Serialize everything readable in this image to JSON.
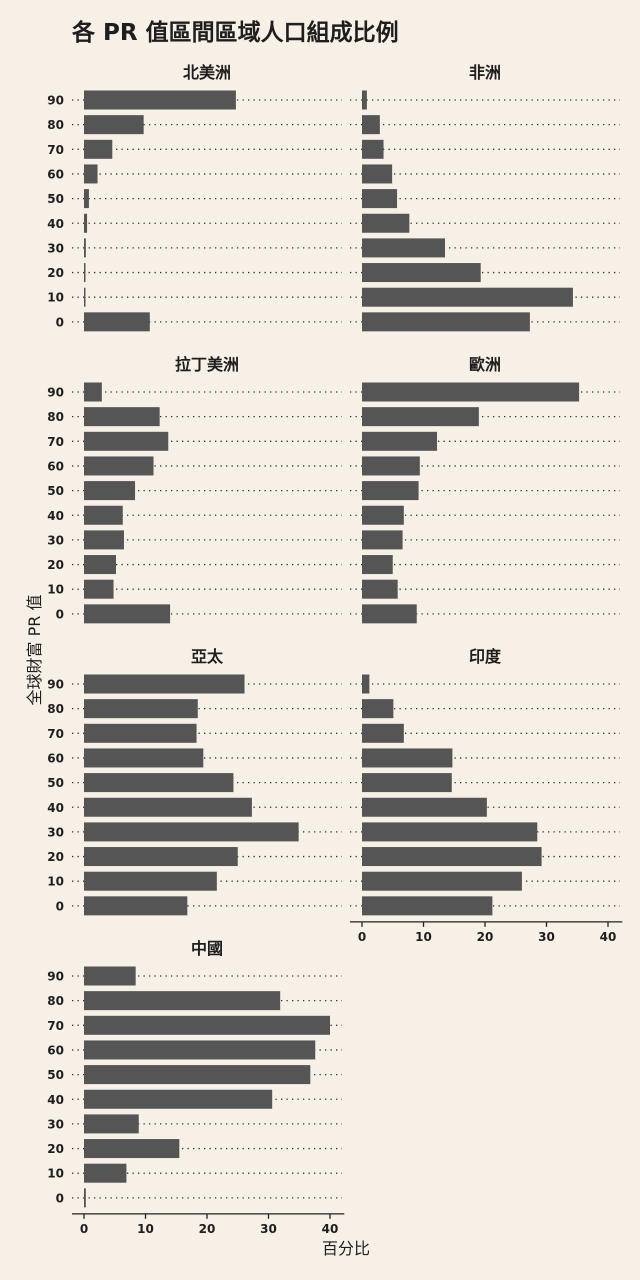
{
  "title": "各 PR 值區間區域人口組成比例",
  "ylabel": "全球財富 PR 值",
  "xlabel": "百分比",
  "colors": {
    "bar": "#555555",
    "background": "#f6f0e6",
    "text": "#1e1e1e",
    "dots": "#333333"
  },
  "chart_data": {
    "type": "bar",
    "orientation": "horizontal",
    "title": "各 PR 值區間區域人口組成比例",
    "xlabel": "百分比",
    "ylabel": "全球財富 PR 值",
    "categories": [
      "90",
      "80",
      "70",
      "60",
      "50",
      "40",
      "30",
      "20",
      "10",
      "0"
    ],
    "xlim": [
      0,
      42
    ],
    "xticks": [
      0,
      10,
      20,
      30,
      40
    ],
    "grid": "dotted row guides",
    "panels": [
      {
        "name": "北美洲",
        "values": [
          24.7,
          9.7,
          4.6,
          2.2,
          0.8,
          0.5,
          0.3,
          0.2,
          0.1,
          10.7
        ]
      },
      {
        "name": "非洲",
        "values": [
          0.8,
          2.9,
          3.5,
          4.9,
          5.7,
          7.7,
          13.5,
          19.3,
          34.3,
          27.3
        ]
      },
      {
        "name": "拉丁美洲",
        "values": [
          2.9,
          12.3,
          13.7,
          11.3,
          8.3,
          6.3,
          6.5,
          5.2,
          4.8,
          14.0
        ]
      },
      {
        "name": "歐洲",
        "values": [
          35.3,
          19.0,
          12.2,
          9.4,
          9.2,
          6.8,
          6.6,
          5.0,
          5.8,
          8.9
        ]
      },
      {
        "name": "亞太",
        "values": [
          26.1,
          18.5,
          18.3,
          19.4,
          24.3,
          27.3,
          34.9,
          25.0,
          21.6,
          16.8
        ]
      },
      {
        "name": "印度",
        "values": [
          1.2,
          5.1,
          6.8,
          14.7,
          14.6,
          20.3,
          28.5,
          29.2,
          26.0,
          21.2
        ]
      },
      {
        "name": "中國",
        "values": [
          8.4,
          31.9,
          40.0,
          37.6,
          36.8,
          30.6,
          8.9,
          15.5,
          6.9,
          0.3
        ]
      }
    ]
  }
}
